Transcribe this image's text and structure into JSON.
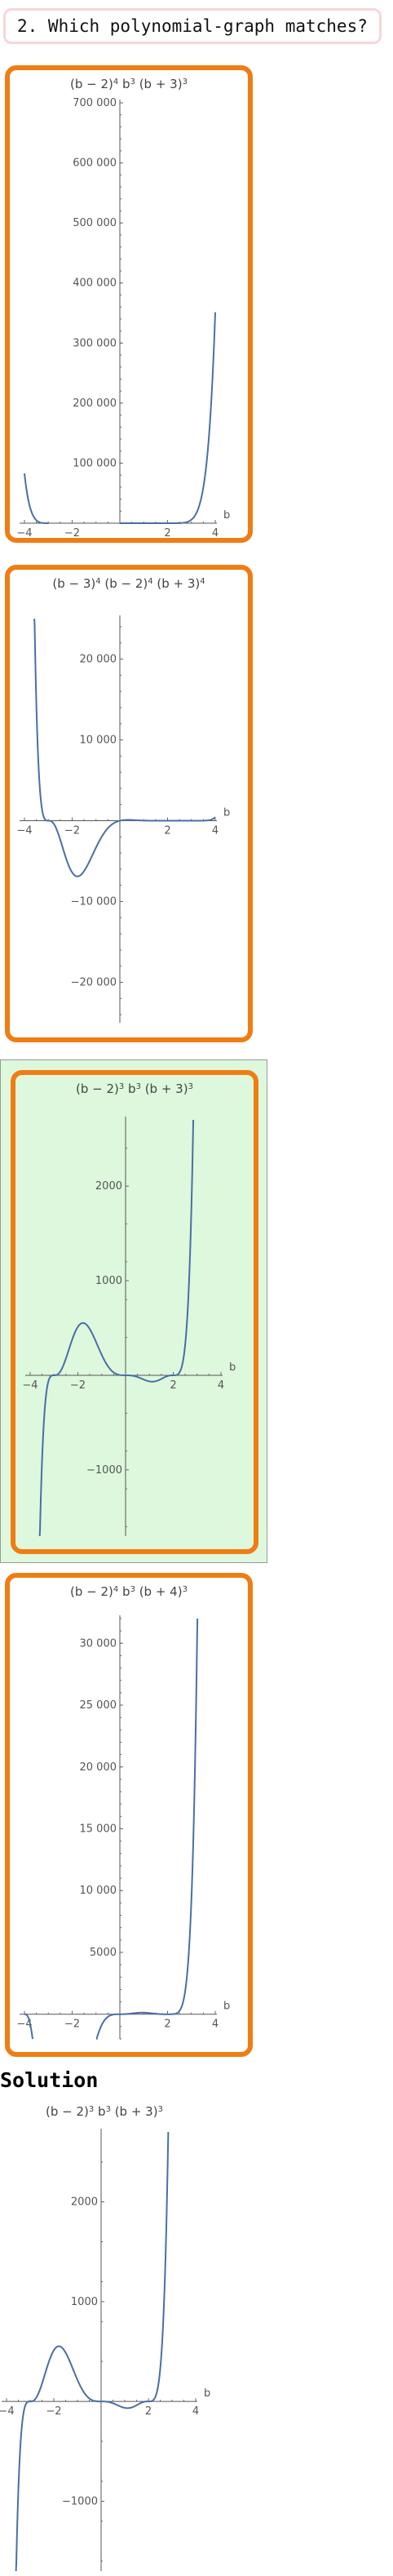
{
  "question": {
    "text": "2. Which polynomial-graph matches?"
  },
  "options": [
    {
      "selected": false,
      "title": {
        "base": "(b − 2)",
        "exp": "4",
        "mid1": " b",
        "exp2": "3",
        "mid2": " (b + 3)",
        "exp3": "3"
      },
      "chart_data": {
        "type": "line",
        "title": "(b − 2)^4 b^3 (b + 3)^3",
        "xlabel": "b",
        "ylabel": "",
        "xlim": [
          -4,
          4
        ],
        "ylim": [
          0,
          700000
        ],
        "xticks": [
          -4,
          -2,
          2,
          4
        ],
        "xtick_labels": [
          "−4",
          "−2",
          "2",
          "4"
        ],
        "yticks": [
          100000,
          200000,
          300000,
          400000,
          500000,
          600000,
          700000
        ],
        "ytick_labels": [
          "100 000",
          "200 000",
          "300 000",
          "400 000",
          "500 000",
          "600 000",
          "700 000"
        ],
        "series": [
          {
            "formula": "(b-2)^4 b^3 (b+3)^3"
          }
        ]
      }
    },
    {
      "selected": false,
      "title": {
        "base": "(b − 3)",
        "exp": "4",
        "mid1": " (b − 2)",
        "exp2": "4",
        "mid2": " (b + 3)",
        "exp3": "4"
      },
      "chart_data": {
        "type": "line",
        "title": "(b − 3)^4 (b − 2)^4 (b + 3)^4",
        "xlabel": "b",
        "ylabel": "",
        "xlim": [
          -4,
          4
        ],
        "ylim": [
          -25000,
          25000
        ],
        "xticks": [
          -4,
          -2,
          2,
          4
        ],
        "xtick_labels": [
          "−4",
          "−2",
          "2",
          "4"
        ],
        "yticks": [
          -20000,
          -10000,
          10000,
          20000
        ],
        "ytick_labels": [
          "−20 000",
          "−10 000",
          "10 000",
          "20 000"
        ],
        "series": [
          {
            "formula": "shown curve"
          }
        ]
      }
    },
    {
      "selected": true,
      "title": {
        "base": "(b − 2)",
        "exp": "3",
        "mid1": " b",
        "exp2": "3",
        "mid2": " (b + 3)",
        "exp3": "3"
      },
      "chart_data": {
        "type": "line",
        "title": "(b − 2)^3 b^3 (b + 3)^3",
        "xlabel": "b",
        "ylabel": "",
        "xlim": [
          -4,
          4
        ],
        "ylim": [
          -1700,
          2700
        ],
        "xticks": [
          -4,
          -2,
          2,
          4
        ],
        "xtick_labels": [
          "−4",
          "−2",
          "2",
          "4"
        ],
        "yticks": [
          -1000,
          1000,
          2000
        ],
        "ytick_labels": [
          "−1000",
          "1000",
          "2000"
        ],
        "series": [
          {
            "formula": "(b-2)^3 b^3 (b+3)^3"
          }
        ]
      }
    },
    {
      "selected": false,
      "title": {
        "base": "(b − 2)",
        "exp": "4",
        "mid1": " b",
        "exp2": "3",
        "mid2": " (b + 4)",
        "exp3": "3"
      },
      "chart_data": {
        "type": "line",
        "title": "(b − 2)^4 b^3 (b + 4)^3",
        "xlabel": "b",
        "ylabel": "",
        "xlim": [
          -4,
          4
        ],
        "ylim": [
          -2000,
          32000
        ],
        "xticks": [
          -4,
          -2,
          2,
          4
        ],
        "xtick_labels": [
          "−4",
          "−2",
          "2",
          "4"
        ],
        "yticks": [
          5000,
          10000,
          15000,
          20000,
          25000,
          30000
        ],
        "ytick_labels": [
          "5000",
          "10 000",
          "15 000",
          "20 000",
          "25 000",
          "30 000"
        ],
        "series": [
          {
            "formula": "(b-2)^4 b^3 (b+4)^3"
          }
        ]
      }
    }
  ],
  "solution": {
    "heading": "Solution",
    "title": {
      "base": "(b − 2)",
      "exp": "3",
      "mid1": " b",
      "exp2": "3",
      "mid2": " (b + 3)",
      "exp3": "3"
    },
    "chart_data": {
      "type": "line",
      "title": "(b − 2)^3 b^3 (b + 3)^3",
      "xlabel": "b",
      "ylabel": "",
      "xlim": [
        -4,
        4
      ],
      "ylim": [
        -1700,
        2700
      ],
      "xticks": [
        -4,
        -2,
        2,
        4
      ],
      "xtick_labels": [
        "−4",
        "−2",
        "2",
        "4"
      ],
      "yticks": [
        -1000,
        1000,
        2000
      ],
      "ytick_labels": [
        "−1000",
        "1000",
        "2000"
      ],
      "series": [
        {
          "formula": "(b-2)^3 b^3 (b+3)^3"
        }
      ]
    }
  }
}
